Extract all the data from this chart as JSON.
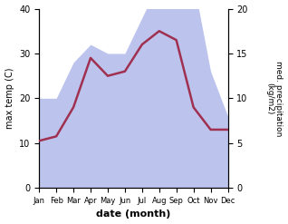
{
  "months": [
    "Jan",
    "Feb",
    "Mar",
    "Apr",
    "May",
    "Jun",
    "Jul",
    "Aug",
    "Sep",
    "Oct",
    "Nov",
    "Dec"
  ],
  "max_temp": [
    10.5,
    11.5,
    18.0,
    29.0,
    25.0,
    26.0,
    32.0,
    35.0,
    33.0,
    18.0,
    13.0,
    13.0
  ],
  "precipitation": [
    10,
    10,
    14,
    16,
    15,
    15,
    19,
    23,
    21,
    23,
    13,
    8
  ],
  "temp_color": "#a03050",
  "precip_fill_color": "#bcc4ee",
  "ylabel_left": "max temp (C)",
  "ylabel_right": "med. precipitation\n(kg/m2)",
  "xlabel": "date (month)",
  "ylim_left": [
    0,
    40
  ],
  "ylim_right": [
    0,
    20
  ],
  "yticks_left": [
    0,
    10,
    20,
    30,
    40
  ],
  "yticks_right": [
    0,
    5,
    10,
    15,
    20
  ],
  "bg_color": "#ffffff"
}
